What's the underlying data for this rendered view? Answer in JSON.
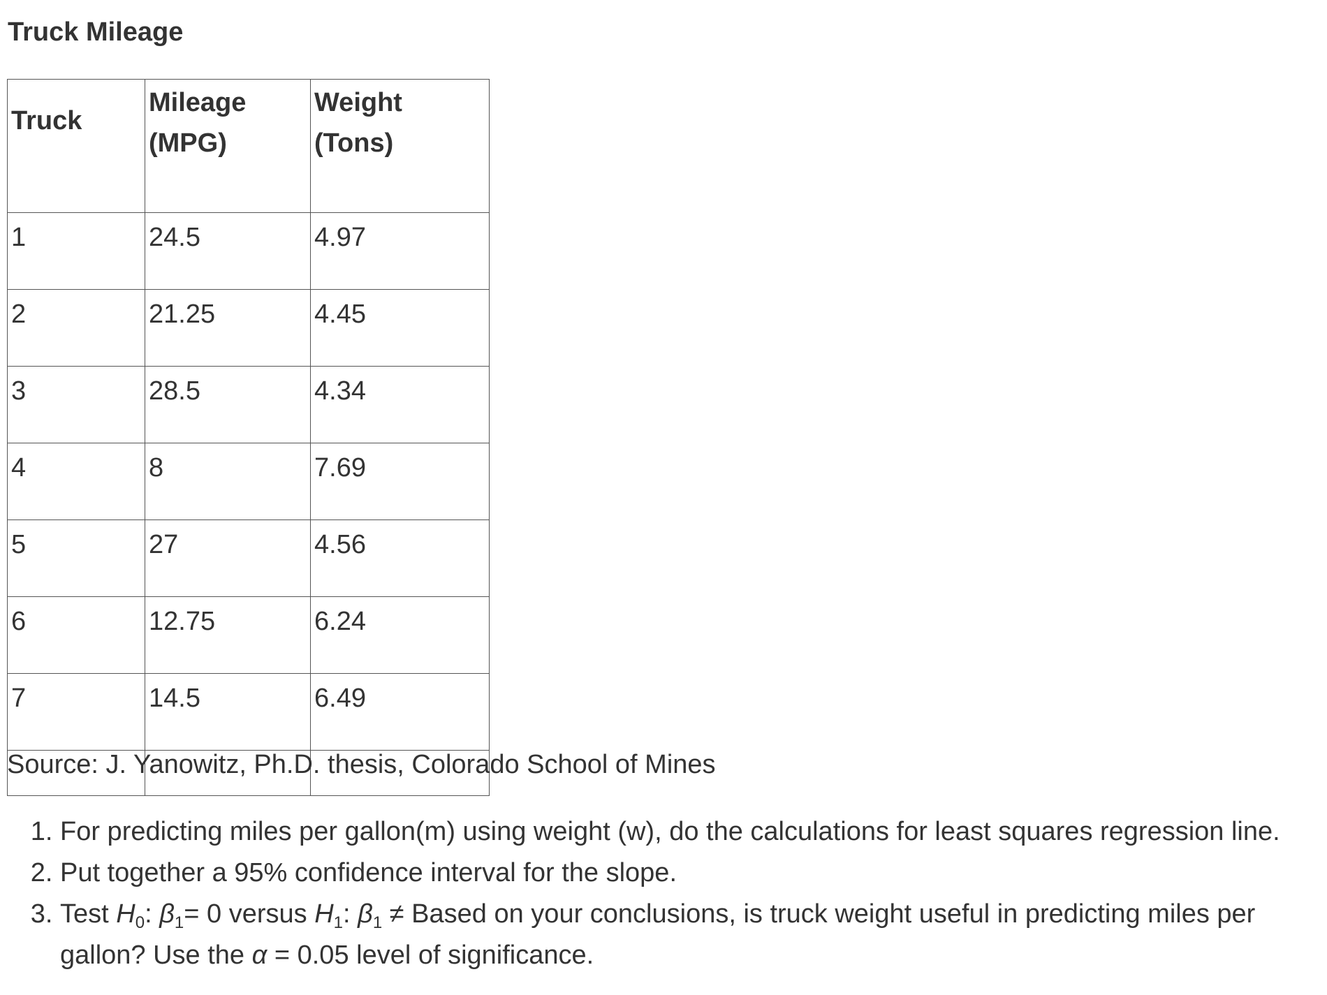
{
  "title": "Truck Mileage",
  "table": {
    "headers": {
      "truck": "Truck",
      "mileage_line1": "Mileage",
      "mileage_line2": "(MPG)",
      "weight_line1": "Weight",
      "weight_line2": "(Tons)"
    },
    "rows": [
      {
        "truck": "1",
        "mileage": "24.5",
        "weight": "4.97"
      },
      {
        "truck": "2",
        "mileage": "21.25",
        "weight": "4.45"
      },
      {
        "truck": "3",
        "mileage": "28.5",
        "weight": "4.34"
      },
      {
        "truck": "4",
        "mileage": "8",
        "weight": "7.69"
      },
      {
        "truck": "5",
        "mileage": "27",
        "weight": "4.56"
      },
      {
        "truck": "6",
        "mileage": "12.75",
        "weight": "6.24"
      },
      {
        "truck": "7",
        "mileage": "14.5",
        "weight": "6.49"
      }
    ]
  },
  "source": "Source: J. Yanowitz, Ph.D. thesis, Colorado School of Mines",
  "questions": {
    "q1": "For predicting miles per gallon(m) using weight (w), do the calculations for least squares regression line.",
    "q2": "Put together a 95% confidence interval for the slope.",
    "q3": {
      "prefix": "Test ",
      "h0": "H",
      "h0_sub": "0",
      "colon1": ": ",
      "beta1": "β",
      "beta1_sub": "1",
      "eq0": "= 0 versus ",
      "h1": "H",
      "h1_sub": "1",
      "colon2": ": ",
      "beta2": "β",
      "beta2_sub": "1",
      "neq": " ≠ Based on your conclusions, is truck weight useful in predicting miles per gallon? Use the ",
      "alpha": "α",
      "tail": " = 0.05 level of significance."
    }
  }
}
